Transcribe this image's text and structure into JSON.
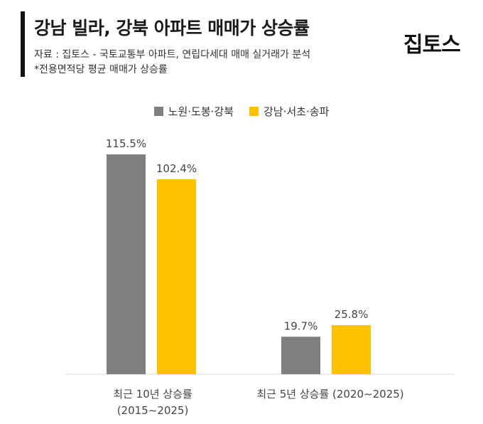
{
  "header": {
    "title": "강남 빌라, 강북 아파트 매매가 상승률",
    "source": "자료 : 집토스 - 국토교통부 아파트, 연립다세대 매매 실거래가 분석",
    "note": "*전용면적당 평균 매매가 상승률",
    "logo": "집토스"
  },
  "colors": {
    "series1": "#7f7f7f",
    "series2": "#ffc000",
    "accent": "#111111"
  },
  "chart_data": {
    "type": "bar",
    "categories": [
      "최근 10년 상승률\n(2015~2025)",
      "최근 5년 상승률 (2020~2025)"
    ],
    "category_lines": [
      [
        "최근 10년 상승률",
        "(2015~2025)"
      ],
      [
        "최근 5년 상승률 (2020~2025)"
      ]
    ],
    "series": [
      {
        "name": "노원·도봉·강북",
        "values": [
          115.5,
          19.7
        ],
        "labels": [
          "115.5%",
          "19.7%"
        ]
      },
      {
        "name": "강남·서초·송파",
        "values": [
          102.4,
          25.8
        ],
        "labels": [
          "102.4%",
          "25.8%"
        ]
      }
    ],
    "ylim": [
      0,
      115.5
    ],
    "legend_position": "top-center",
    "grid": false
  }
}
